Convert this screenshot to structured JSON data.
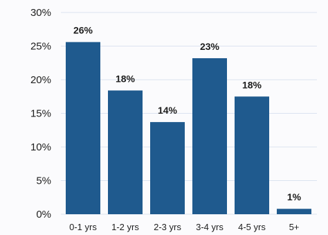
{
  "chart_data": {
    "type": "bar",
    "title": "",
    "xlabel": "",
    "ylabel": "",
    "categories": [
      "0-1 yrs",
      "1-2 yrs",
      "2-3 yrs",
      "3-4 yrs",
      "4-5 yrs",
      "5+"
    ],
    "values": [
      25.6,
      18.4,
      13.7,
      23.2,
      17.5,
      0.8
    ],
    "data_labels": [
      "26%",
      "18%",
      "14%",
      "23%",
      "18%",
      "1%"
    ],
    "ylim": [
      0,
      30
    ],
    "yticks": [
      0,
      5,
      10,
      15,
      20,
      25,
      30
    ],
    "ytick_labels": [
      "0%",
      "5%",
      "10%",
      "15%",
      "20%",
      "25%",
      "30%"
    ],
    "grid": true,
    "legend": "none",
    "bar_color": "#1f5a8e",
    "grid_color": "#dbe3f0"
  }
}
